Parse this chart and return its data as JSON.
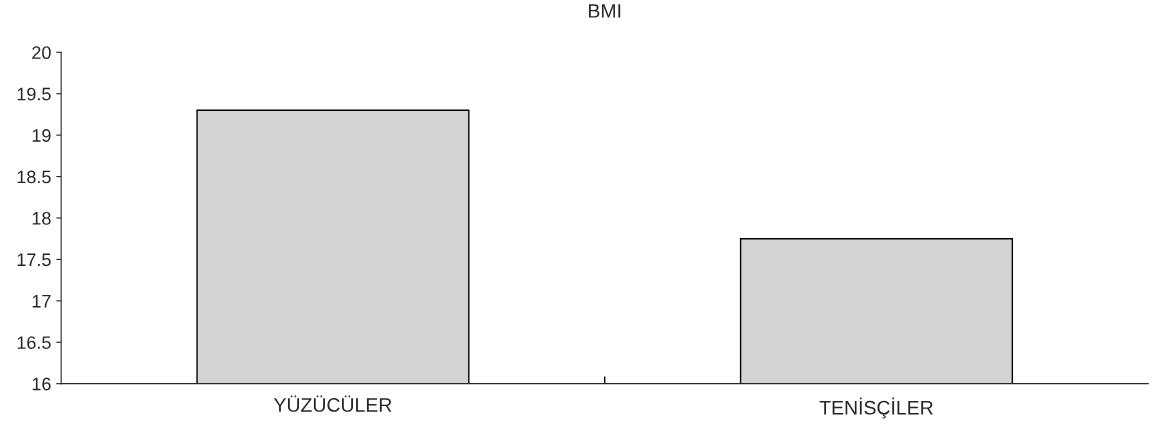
{
  "chart_data": {
    "type": "bar",
    "title": "BMI",
    "categories": [
      "YÜZÜCÜLER",
      "TENİSÇİLER"
    ],
    "values": [
      19.3,
      17.75
    ],
    "color": "#d4d4d4",
    "ylim": [
      16,
      20
    ],
    "yticks": [
      16,
      16.5,
      17,
      17.5,
      18,
      18.5,
      19,
      19.5,
      20
    ],
    "grid": false
  }
}
